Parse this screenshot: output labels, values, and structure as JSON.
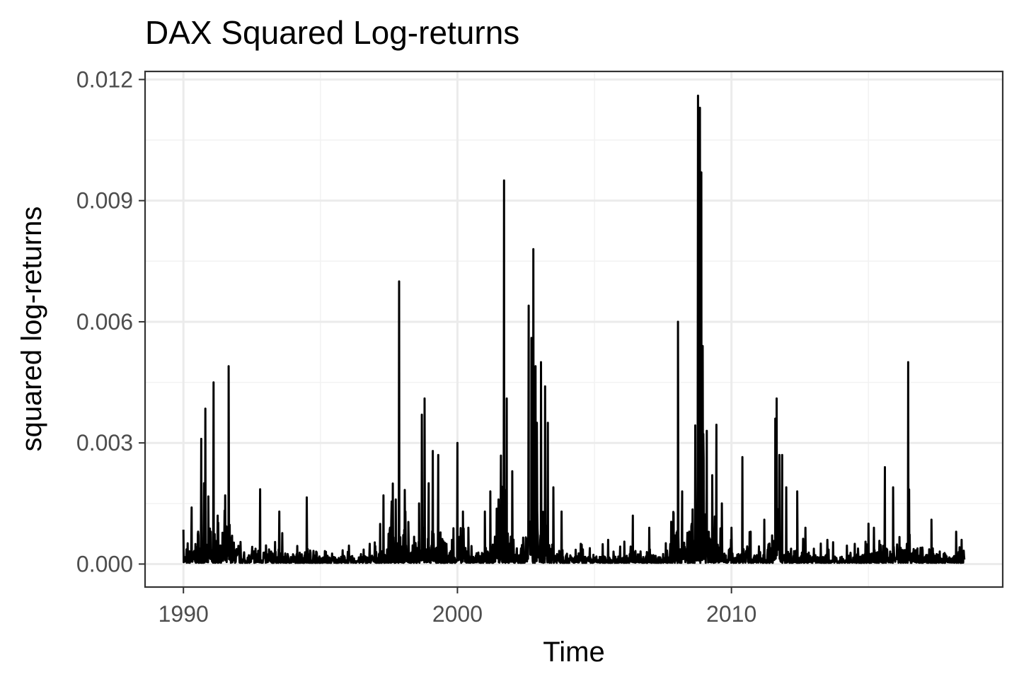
{
  "chart_data": {
    "type": "line",
    "title": "DAX Squared Log-returns",
    "xlabel": "Time",
    "ylabel": "squared log-returns",
    "xlim": [
      1988.6,
      2019.9
    ],
    "ylim": [
      -0.00057,
      0.0122
    ],
    "x_ticks": [
      1990,
      2000,
      2010
    ],
    "x_tick_labels": [
      "1990",
      "2000",
      "2010"
    ],
    "y_ticks": [
      0.0,
      0.003,
      0.006,
      0.009,
      0.012
    ],
    "y_tick_labels": [
      "0.000",
      "0.003",
      "0.006",
      "0.009",
      "0.012"
    ],
    "grid": true,
    "legend": "none",
    "baseline_value": 3e-05,
    "series": [
      {
        "x_start": 1990.0,
        "x_end": 2018.5,
        "spikes": [
          [
            1990.0,
            0.00085
          ],
          [
            1990.3,
            0.0014
          ],
          [
            1990.55,
            0.0007
          ],
          [
            1990.65,
            0.0031
          ],
          [
            1990.75,
            0.002
          ],
          [
            1990.8,
            0.00385
          ],
          [
            1991.0,
            0.0008
          ],
          [
            1991.1,
            0.0045
          ],
          [
            1991.25,
            0.0012
          ],
          [
            1991.6,
            0.0007
          ],
          [
            1991.65,
            0.0049
          ],
          [
            1992.5,
            0.0003
          ],
          [
            1992.8,
            0.00185
          ],
          [
            1993.5,
            0.0013
          ],
          [
            1994.5,
            0.00165
          ],
          [
            1995.2,
            0.0003
          ],
          [
            1996.0,
            0.0003
          ],
          [
            1996.8,
            0.0005
          ],
          [
            1997.3,
            0.0017
          ],
          [
            1997.6,
            0.00155
          ],
          [
            1997.75,
            0.0016
          ],
          [
            1997.87,
            0.007
          ],
          [
            1998.1,
            0.0013
          ],
          [
            1998.6,
            0.0015
          ],
          [
            1998.7,
            0.0037
          ],
          [
            1998.8,
            0.0041
          ],
          [
            1998.95,
            0.002
          ],
          [
            1999.1,
            0.0028
          ],
          [
            1999.3,
            0.0027
          ],
          [
            1999.6,
            0.0005
          ],
          [
            1999.8,
            0.0006
          ],
          [
            2000.0,
            0.003
          ],
          [
            2000.2,
            0.0013
          ],
          [
            2000.4,
            0.0009
          ],
          [
            2001.0,
            0.0013
          ],
          [
            2001.2,
            0.0018
          ],
          [
            2001.5,
            0.0016
          ],
          [
            2001.7,
            0.0095
          ],
          [
            2001.8,
            0.0041
          ],
          [
            2002.0,
            0.0023
          ],
          [
            2002.6,
            0.0064
          ],
          [
            2002.7,
            0.0056
          ],
          [
            2002.77,
            0.0078
          ],
          [
            2002.85,
            0.0049
          ],
          [
            2002.9,
            0.0035
          ],
          [
            2003.05,
            0.005
          ],
          [
            2003.2,
            0.0044
          ],
          [
            2003.3,
            0.0035
          ],
          [
            2003.5,
            0.0019
          ],
          [
            2003.8,
            0.0013
          ],
          [
            2004.5,
            0.0005
          ],
          [
            2005.5,
            0.0006
          ],
          [
            2006.4,
            0.0012
          ],
          [
            2007.0,
            0.0009
          ],
          [
            2008.05,
            0.006
          ],
          [
            2008.2,
            0.0018
          ],
          [
            2008.55,
            0.001
          ],
          [
            2008.7,
            0.0012
          ],
          [
            2008.78,
            0.0116
          ],
          [
            2008.85,
            0.0113
          ],
          [
            2008.9,
            0.0097
          ],
          [
            2008.95,
            0.0054
          ],
          [
            2009.1,
            0.0033
          ],
          [
            2009.3,
            0.0022
          ],
          [
            2009.45,
            0.00345
          ],
          [
            2009.65,
            0.0015
          ],
          [
            2010.0,
            0.0009
          ],
          [
            2010.4,
            0.00265
          ],
          [
            2010.7,
            0.0008
          ],
          [
            2011.2,
            0.0011
          ],
          [
            2011.6,
            0.0036
          ],
          [
            2011.65,
            0.0041
          ],
          [
            2011.75,
            0.0027
          ],
          [
            2011.85,
            0.0027
          ],
          [
            2012.0,
            0.0019
          ],
          [
            2012.4,
            0.0018
          ],
          [
            2012.7,
            0.0009
          ],
          [
            2013.5,
            0.0006
          ],
          [
            2014.5,
            0.0005
          ],
          [
            2015.0,
            0.001
          ],
          [
            2015.2,
            0.0009
          ],
          [
            2015.6,
            0.0024
          ],
          [
            2015.9,
            0.0019
          ],
          [
            2016.4,
            0.0005
          ],
          [
            2016.45,
            0.005
          ],
          [
            2017.3,
            0.0011
          ],
          [
            2018.2,
            0.0008
          ],
          [
            2018.4,
            0.0006
          ]
        ]
      }
    ]
  }
}
